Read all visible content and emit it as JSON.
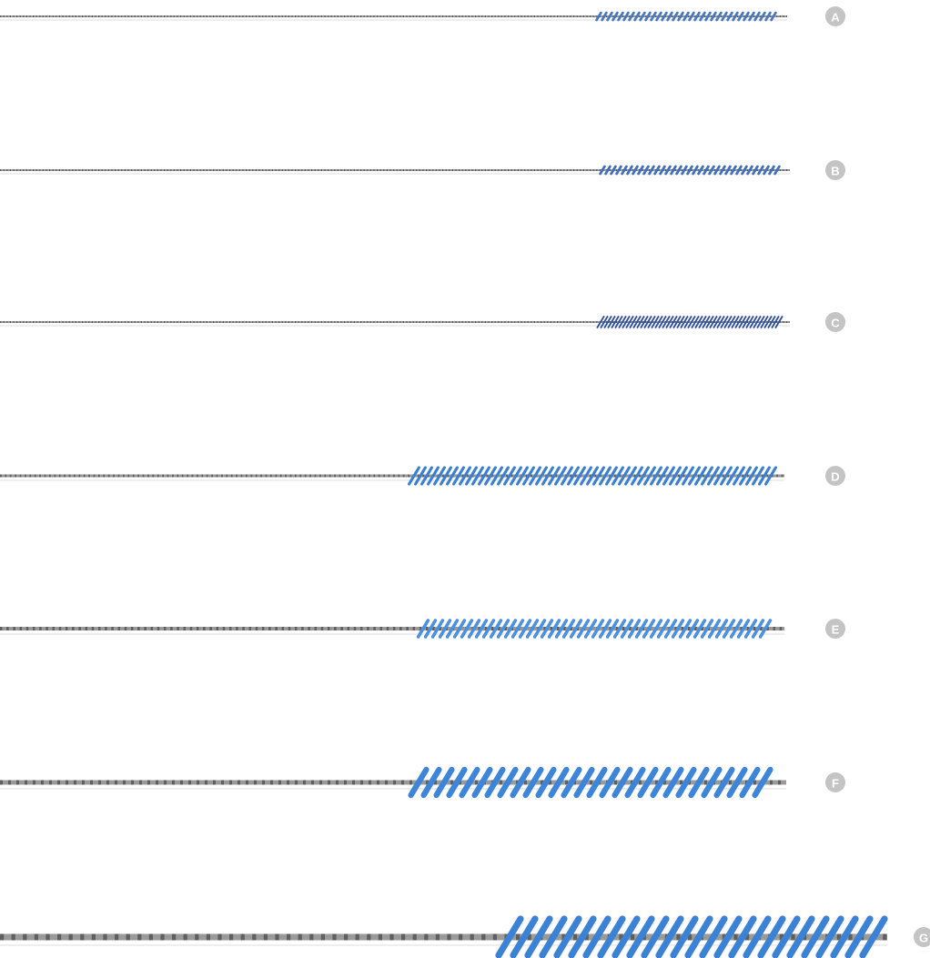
{
  "items": [
    {
      "label": "A"
    },
    {
      "label": "B"
    },
    {
      "label": "C"
    },
    {
      "label": "D"
    },
    {
      "label": "E"
    },
    {
      "label": "F"
    },
    {
      "label": "G"
    }
  ]
}
